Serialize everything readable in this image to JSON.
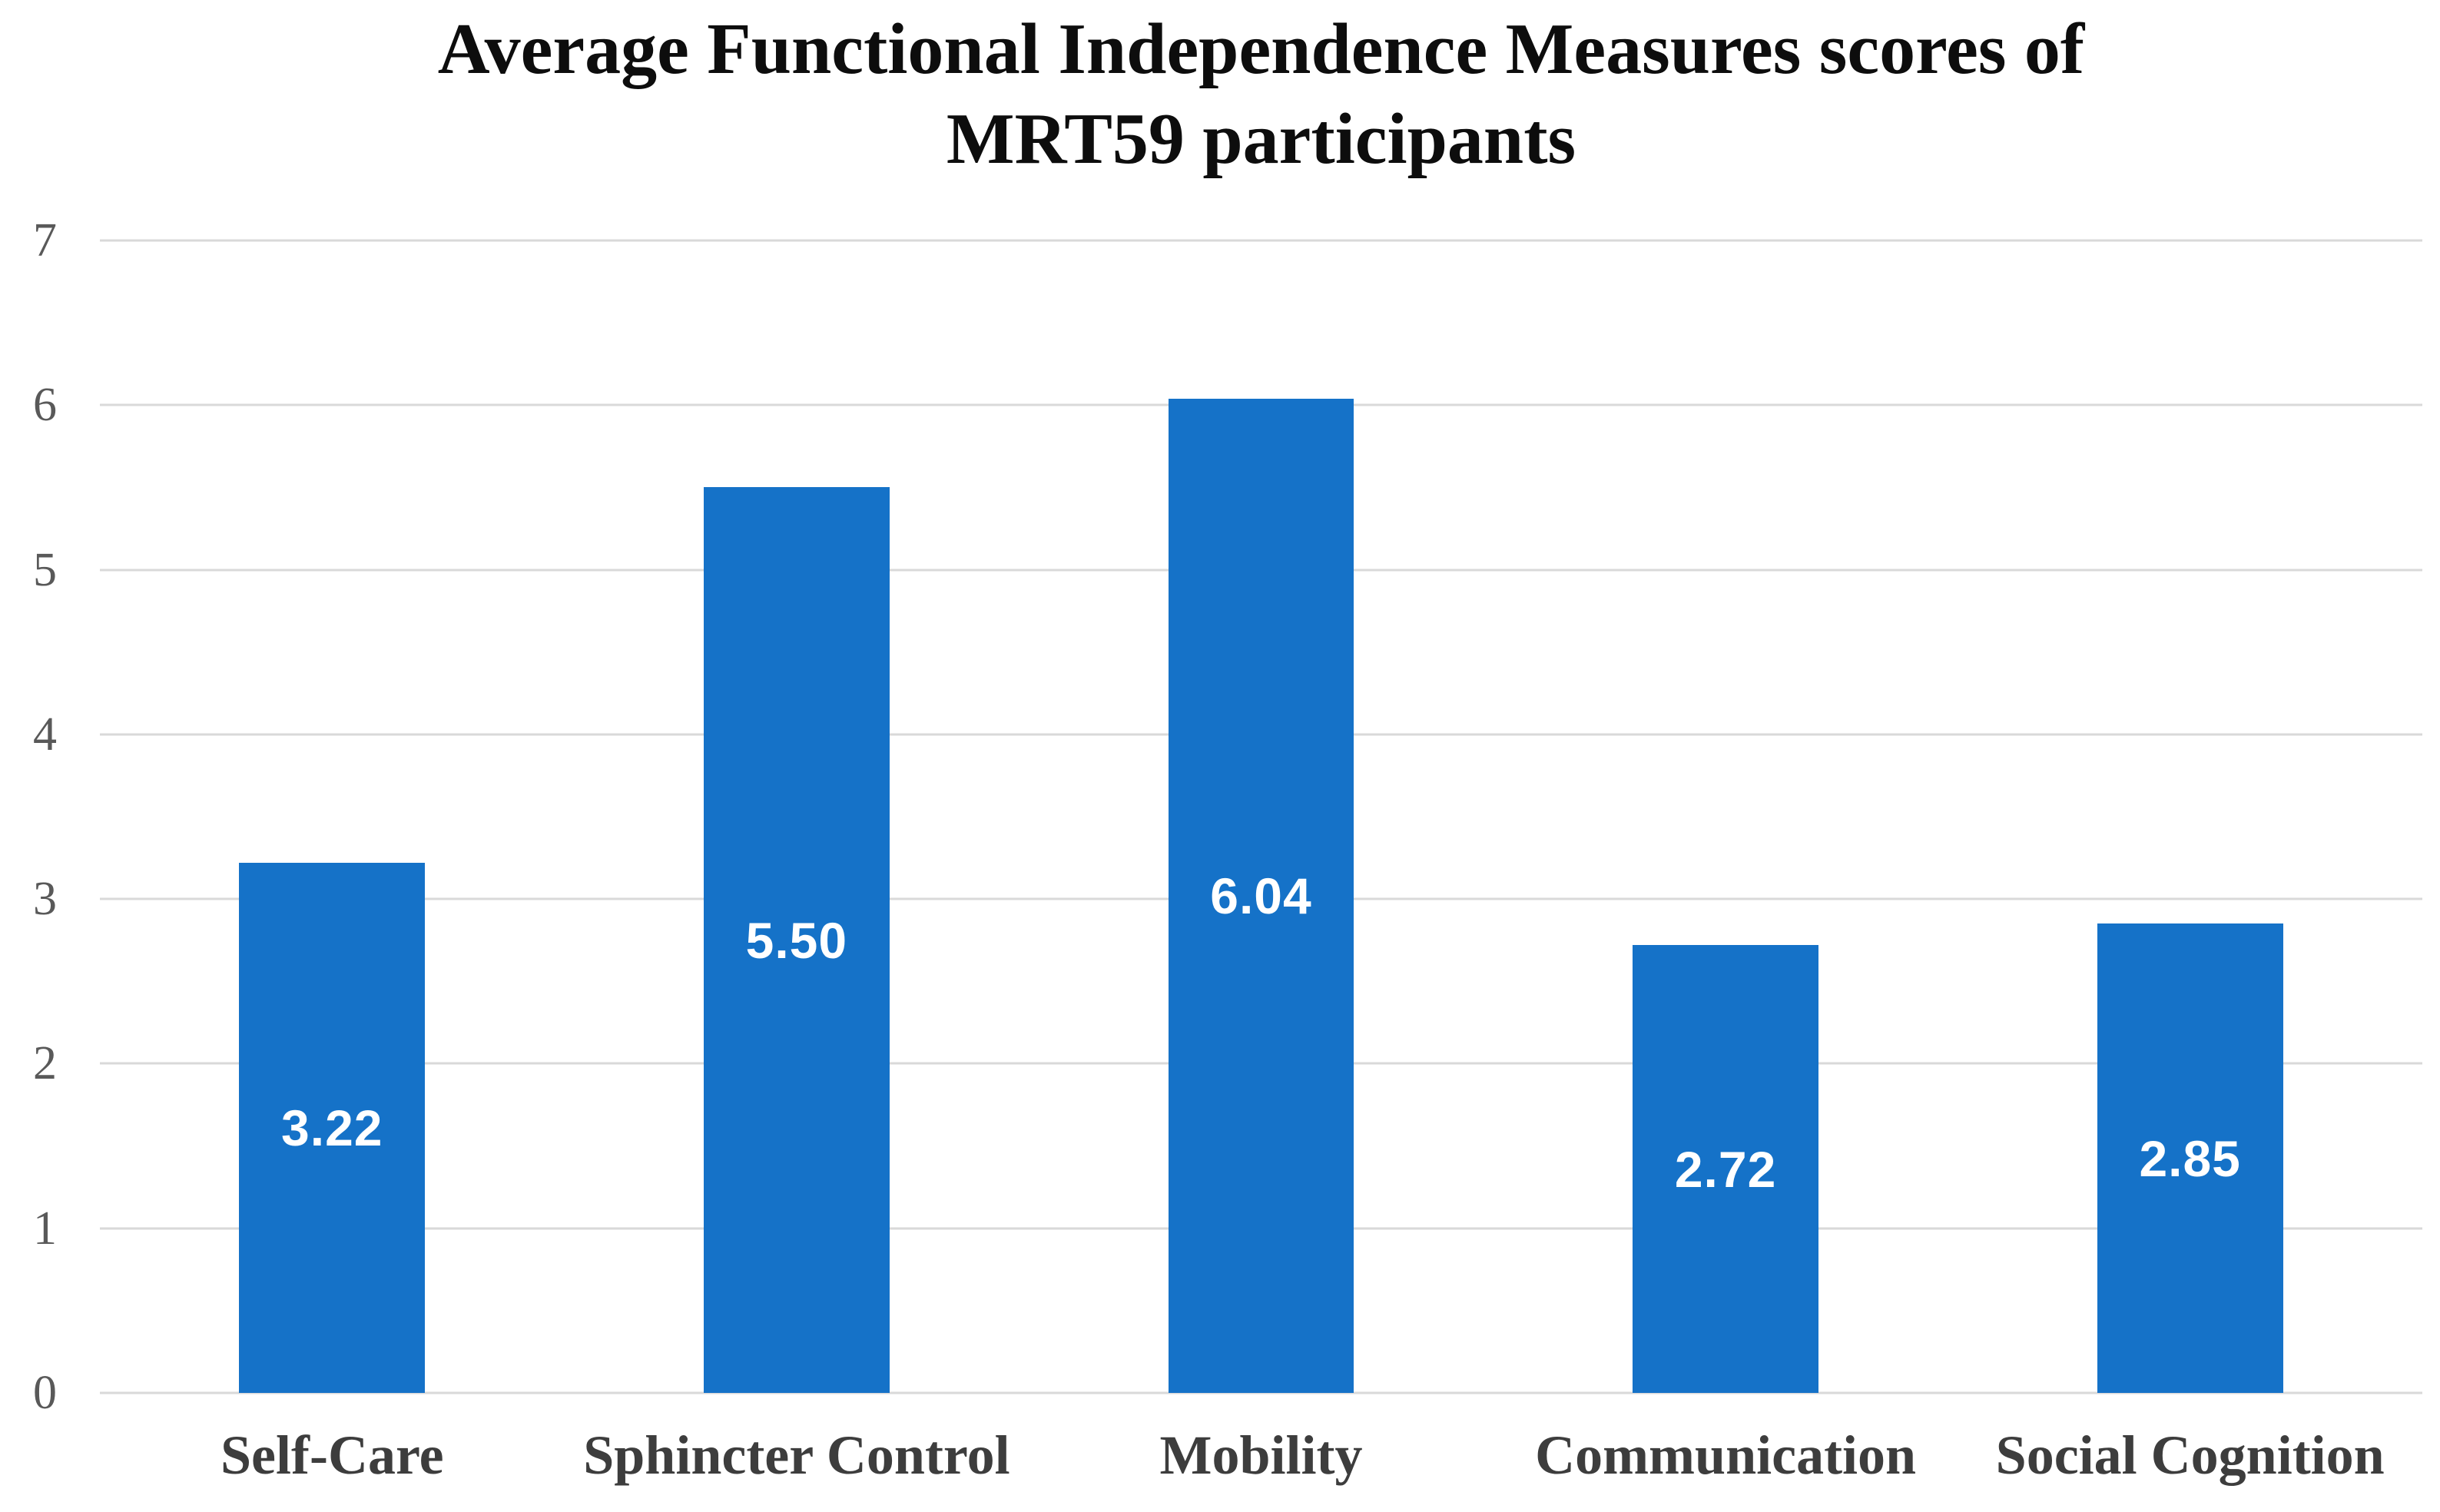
{
  "page": {
    "background": "#ffffff"
  },
  "chart_data": {
    "type": "bar",
    "title": "Average Functional Independence Measures scores of MRT59 participants",
    "title_lines": [
      "Average Functional Independence Measures scores of",
      "MRT59 participants"
    ],
    "categories": [
      "Self-Care",
      "Sphincter Control",
      "Mobility",
      "Communication",
      "Social Cognition"
    ],
    "values": [
      3.22,
      5.5,
      6.04,
      2.72,
      2.85
    ],
    "value_labels": [
      "3.22",
      "5.50",
      "6.04",
      "2.72",
      "2.85"
    ],
    "xlabel": "",
    "ylabel": "",
    "ylim": [
      0,
      7
    ],
    "yticks": [
      0,
      1,
      2,
      3,
      4,
      5,
      6,
      7
    ],
    "grid": true,
    "legend_position": "none",
    "data_label_position": "center-inside-bar",
    "colors": {
      "bar": "#1572c8",
      "gridline": "#d9d9d9",
      "ytick_text": "#595959",
      "category_text": "#3d3d3d",
      "title_text": "#0d0d0d",
      "value_label_text": "#ffffff",
      "background": "#ffffff"
    }
  }
}
